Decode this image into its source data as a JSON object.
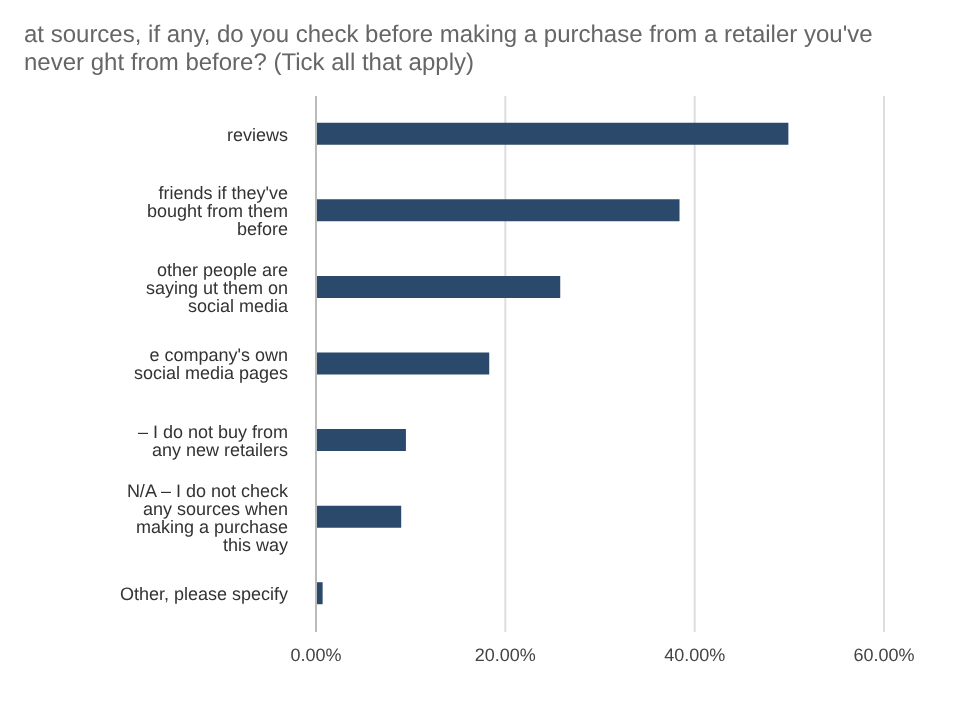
{
  "chart_data": {
    "type": "bar",
    "orientation": "horizontal",
    "title": "at sources, if any, do you check before making a purchase from a retailer you've never ght from before? (Tick all that apply)",
    "categories": [
      "reviews",
      "friends if they've bought from them before",
      "other people are saying ut them on social media",
      "e company's own social media pages",
      "– I do not buy from any new retailers",
      "N/A – I do not check any sources when making a purchase this way",
      "Other, please specify"
    ],
    "values": [
      49.9,
      38.4,
      25.8,
      18.3,
      9.5,
      9.0,
      0.7
    ],
    "color": "#2b4a6b",
    "xlim": [
      0,
      60
    ],
    "xticks": [
      {
        "value": 0,
        "label": "0.00%"
      },
      {
        "value": 20,
        "label": "20.00%"
      },
      {
        "value": 40,
        "label": "40.00%"
      },
      {
        "value": 60,
        "label": "60.00%"
      }
    ],
    "grid": "x"
  }
}
